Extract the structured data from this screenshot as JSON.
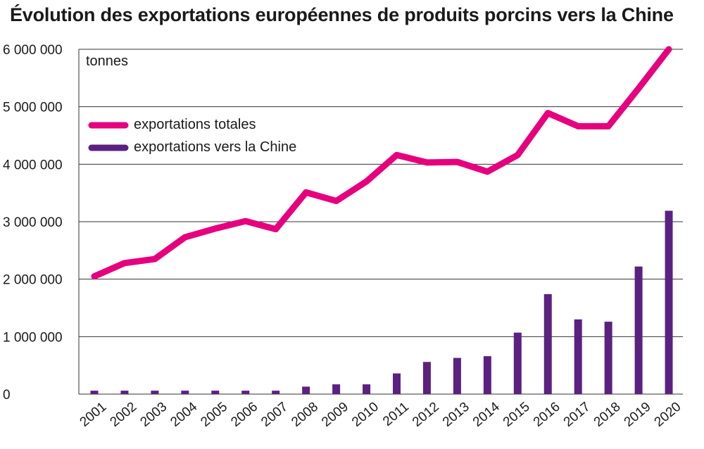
{
  "chart_data": {
    "type": "bar+line",
    "title": "Évolution des exportations européennes de produits porcins vers la Chine",
    "unit_label": "tonnes",
    "categories": [
      "2001",
      "2002",
      "2003",
      "2004",
      "2005",
      "2006",
      "2007",
      "2008",
      "2009",
      "2010",
      "2011",
      "2012",
      "2013",
      "2014",
      "2015",
      "2016",
      "2017",
      "2018",
      "2019",
      "2020"
    ],
    "y_ticks": [
      "0",
      "1 000 000",
      "2 000 000",
      "3 000 000",
      "4 000 000",
      "5 000 000",
      "6 000 000"
    ],
    "ylim": [
      0,
      6000000
    ],
    "grid": true,
    "legend_position": "top-left",
    "series": [
      {
        "name": "exportations totales",
        "kind": "line",
        "color": "#e6007e",
        "values": [
          2050000,
          2280000,
          2350000,
          2730000,
          2880000,
          3010000,
          2870000,
          3510000,
          3360000,
          3700000,
          4160000,
          4030000,
          4040000,
          3870000,
          4160000,
          4890000,
          4660000,
          4660000,
          5320000,
          6000000
        ]
      },
      {
        "name": "exportations vers la Chine",
        "kind": "bar",
        "color": "#5a2181",
        "values": [
          60000,
          60000,
          60000,
          60000,
          60000,
          60000,
          60000,
          130000,
          170000,
          170000,
          360000,
          560000,
          630000,
          660000,
          1070000,
          1740000,
          1300000,
          1260000,
          2220000,
          3190000
        ]
      }
    ]
  }
}
